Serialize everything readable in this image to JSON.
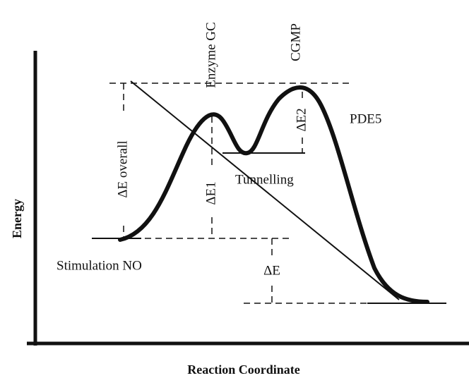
{
  "axes": {
    "y_label": "Energy",
    "x_label": "Reaction Coordinate"
  },
  "labels": {
    "stimulation": "Stimulation NO",
    "enzyme": "Enzyme GC",
    "cgmp": "CGMP",
    "pde5": "PDE5",
    "tunnelling": "Tunnelling",
    "delta_overall": "ΔE overall",
    "delta_e1": "ΔE1",
    "delta_e2": "ΔE2",
    "delta_e": "ΔE"
  }
}
